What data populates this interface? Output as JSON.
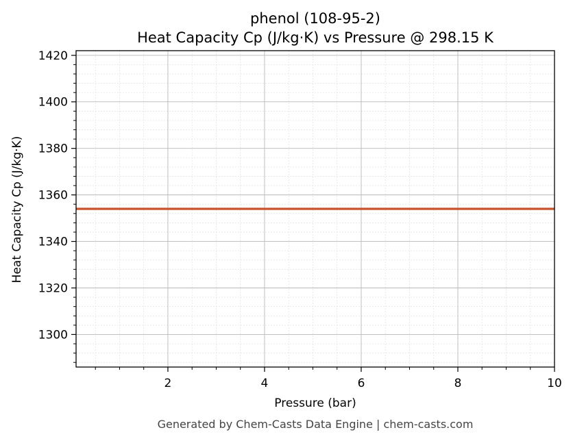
{
  "chart_data": {
    "type": "line",
    "title_line1": "phenol (108-95-2)",
    "title_line2": "Heat Capacity Cp (J/kg·K) vs Pressure @ 298.15 K",
    "xlabel": "Pressure (bar)",
    "ylabel": "Heat Capacity Cp (J/kg·K)",
    "xlim": [
      0.1,
      10
    ],
    "ylim": [
      1286,
      1422
    ],
    "xticks": [
      2,
      4,
      6,
      8,
      10
    ],
    "yticks": [
      1300,
      1320,
      1340,
      1360,
      1380,
      1400,
      1420
    ],
    "grid": true,
    "series": [
      {
        "color": "#c8522a",
        "x": [
          0.1,
          10
        ],
        "y": [
          1354,
          1354
        ]
      }
    ]
  },
  "footer": "Generated by Chem-Casts Data Engine | chem-casts.com"
}
